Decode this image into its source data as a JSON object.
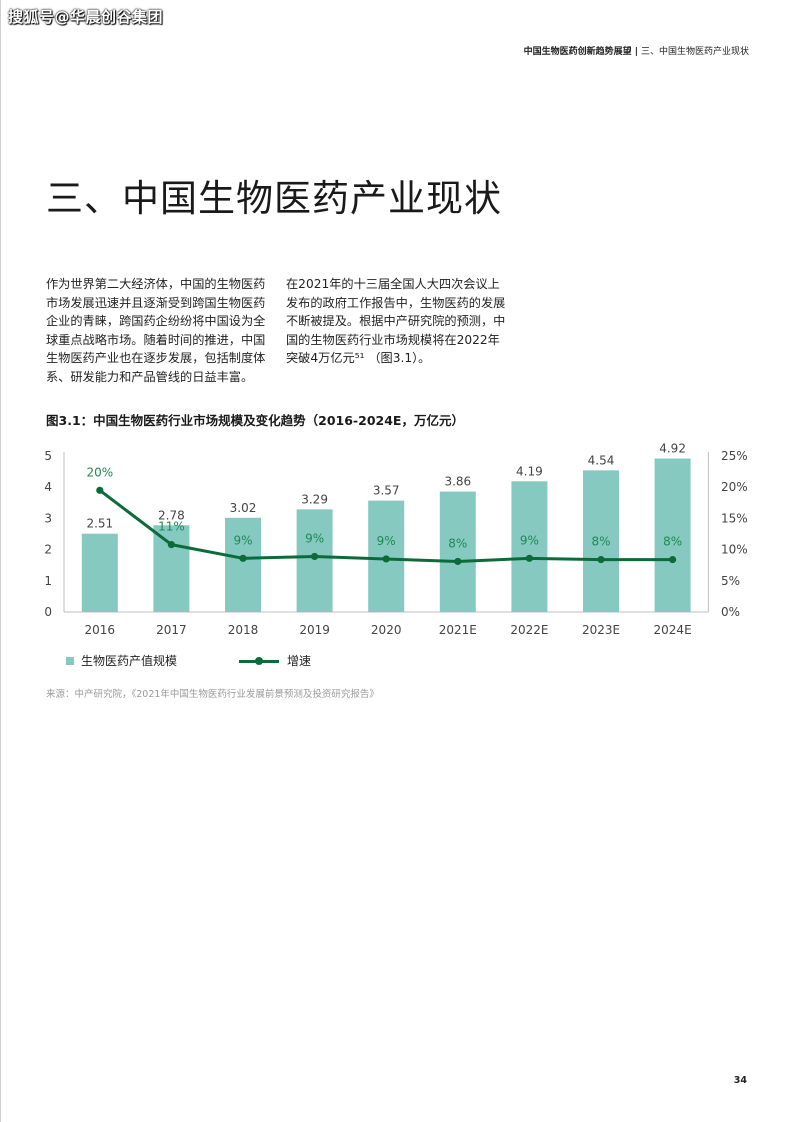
{
  "watermark": "搜狐号@华晨创谷集团",
  "running_head": {
    "strong": "中国生物医药创新趋势展望",
    "separator": "|",
    "section": "三、中国生物医药产业现状"
  },
  "page_title": "三、中国生物医药产业现状",
  "body": {
    "left_paragraph": "作为世界第二大经济体，中国的生物医药市场发展迅速并且逐渐受到跨国生物医药企业的青睐，跨国药企纷纷将中国设为全球重点战略市场。随着时间的推进，中国生物医药产业也在逐步发展，包括制度体系、研发能力和产品管线的日益丰富。",
    "right_paragraph": "在2021年的十三届全国人大四次会议上发布的政府工作报告中，生物医药的发展不断被提及。根据中产研究院的预测，中国的生物医药行业市场规模将在2022年突破4万亿元⁵¹ （图3.1）。"
  },
  "figure_title": "图3.1：中国生物医药行业市场规模及变化趋势（2016-2024E，万亿元）",
  "chart_data": {
    "type": "bar",
    "categories": [
      "2016",
      "2017",
      "2018",
      "2019",
      "2020",
      "2021E",
      "2022E",
      "2023E",
      "2024E"
    ],
    "series": [
      {
        "name": "生物医药产值规模",
        "kind": "bar",
        "axis": "left",
        "color": "#86c9c1",
        "values": [
          2.51,
          2.78,
          3.02,
          3.29,
          3.57,
          3.86,
          4.19,
          4.54,
          4.92
        ],
        "labels": [
          "2.51",
          "2.78",
          "3.02",
          "3.29",
          "3.57",
          "3.86",
          "4.19",
          "4.54",
          "4.92"
        ]
      },
      {
        "name": "增速",
        "kind": "line",
        "axis": "right",
        "color": "#0d6b3a",
        "values": [
          19.5,
          10.8,
          8.6,
          8.9,
          8.5,
          8.1,
          8.6,
          8.4,
          8.4
        ],
        "labels": [
          "20%",
          "11%",
          "9%",
          "9%",
          "9%",
          "8%",
          "9%",
          "8%",
          "8%"
        ]
      }
    ],
    "ylim": [
      0,
      5
    ],
    "yticks": [
      "0",
      "1",
      "2",
      "3",
      "4",
      "5"
    ],
    "y2lim": [
      0,
      25
    ],
    "y2ticks": [
      "0%",
      "5%",
      "10%",
      "15%",
      "20%",
      "25%"
    ],
    "grid": false,
    "legend_position": "bottom-left"
  },
  "legend": {
    "bar_label": "生物医药产值规模",
    "line_label": "增速"
  },
  "source": "来源：中产研究院，《2021年中国生物医药行业发展前景预测及投资研究报告》",
  "page_number": "34"
}
